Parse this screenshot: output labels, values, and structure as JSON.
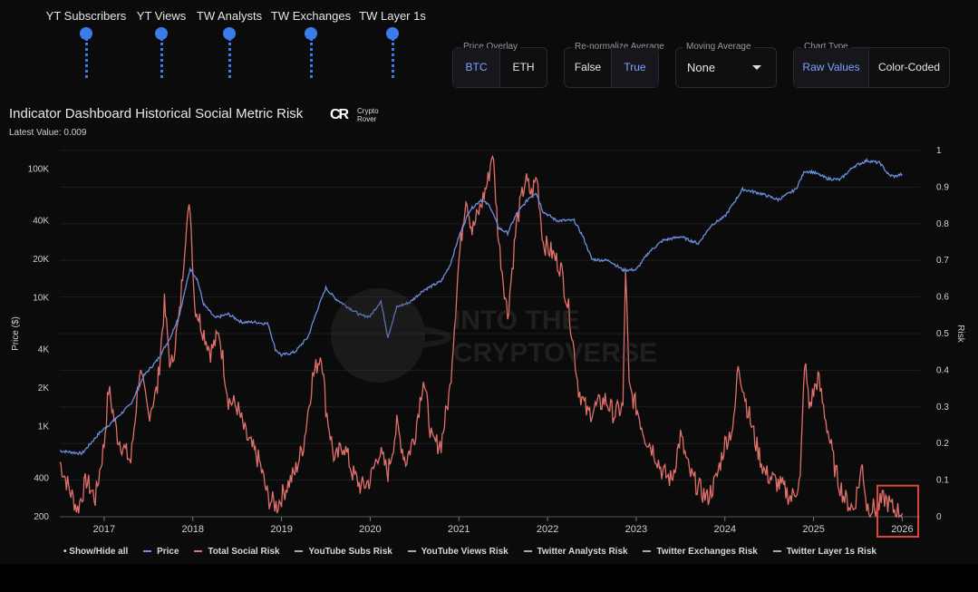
{
  "sliders": [
    {
      "label": "YT Subscribers"
    },
    {
      "label": "YT Views"
    },
    {
      "label": "TW Analysts"
    },
    {
      "label": "TW Exchanges"
    },
    {
      "label": "TW Layer 1s"
    }
  ],
  "controls": {
    "price_overlay": {
      "label": "Price Overlay",
      "options": [
        "BTC",
        "ETH"
      ],
      "selected": "BTC"
    },
    "renormalize": {
      "label": "Re-normalize Average",
      "options": [
        "False",
        "True"
      ],
      "selected": "True"
    },
    "moving_average": {
      "label": "Moving Average",
      "value": "None"
    },
    "chart_type": {
      "label": "Chart Type",
      "options": [
        "Raw Values",
        "Color-Coded"
      ],
      "selected": "Raw Values"
    }
  },
  "header": {
    "title": "Indicator Dashboard Historical Social Metric Risk",
    "latest_value": "Latest Value: 0.009",
    "logo_text_1": "Crypto",
    "logo_text_2": "Rover"
  },
  "watermark": {
    "line1": "INTO THE",
    "line2": "CRYPTOVERSE"
  },
  "colors": {
    "price": "#6b8fe0",
    "risk": "#e0706a",
    "accent": "#3b7de8",
    "highlight": "#e0463a"
  },
  "chart_data": {
    "type": "line",
    "x_ticks": [
      "2017",
      "2018",
      "2019",
      "2020",
      "2021",
      "2022",
      "2023",
      "2024",
      "2025",
      "2026"
    ],
    "xlim": [
      2016.5,
      2026.2
    ],
    "y_left": {
      "label": "Price ($)",
      "scale": "log",
      "ticks": [
        200,
        400,
        1000,
        2000,
        4000,
        10000,
        20000,
        40000,
        100000
      ],
      "tick_labels": [
        "200",
        "400",
        "1K",
        "2K",
        "4K",
        "10K",
        "20K",
        "40K",
        "100K"
      ],
      "lim": [
        200,
        140000
      ]
    },
    "y_right": {
      "label": "Risk",
      "ticks": [
        0,
        0.1,
        0.2,
        0.3,
        0.4,
        0.5,
        0.6,
        0.7,
        0.8,
        0.9,
        1
      ],
      "tick_labels": [
        "0",
        "0.1",
        "0.2",
        "0.3",
        "0.4",
        "0.5",
        "0.6",
        "0.7",
        "0.8",
        "0.9",
        "1"
      ],
      "lim": [
        0,
        1
      ]
    },
    "series": [
      {
        "name": "Price",
        "axis": "left",
        "points": [
          [
            2016.5,
            650
          ],
          [
            2016.75,
            620
          ],
          [
            2016.95,
            900
          ],
          [
            2017.1,
            1100
          ],
          [
            2017.3,
            1500
          ],
          [
            2017.45,
            2500
          ],
          [
            2017.6,
            3300
          ],
          [
            2017.75,
            5000
          ],
          [
            2017.85,
            7500
          ],
          [
            2017.97,
            17000
          ],
          [
            2018.05,
            14000
          ],
          [
            2018.12,
            9000
          ],
          [
            2018.25,
            7000
          ],
          [
            2018.4,
            7500
          ],
          [
            2018.55,
            6500
          ],
          [
            2018.7,
            6500
          ],
          [
            2018.85,
            6300
          ],
          [
            2018.93,
            4000
          ],
          [
            2019.0,
            3600
          ],
          [
            2019.15,
            3800
          ],
          [
            2019.3,
            5000
          ],
          [
            2019.4,
            8000
          ],
          [
            2019.5,
            12000
          ],
          [
            2019.6,
            10000
          ],
          [
            2019.75,
            8500
          ],
          [
            2019.9,
            7300
          ],
          [
            2020.0,
            7200
          ],
          [
            2020.12,
            9500
          ],
          [
            2020.2,
            5000
          ],
          [
            2020.3,
            8500
          ],
          [
            2020.45,
            9300
          ],
          [
            2020.6,
            11500
          ],
          [
            2020.8,
            13500
          ],
          [
            2020.9,
            18000
          ],
          [
            2021.0,
            30000
          ],
          [
            2021.12,
            48000
          ],
          [
            2021.25,
            58000
          ],
          [
            2021.35,
            52000
          ],
          [
            2021.45,
            35000
          ],
          [
            2021.55,
            32000
          ],
          [
            2021.65,
            45000
          ],
          [
            2021.8,
            61000
          ],
          [
            2021.87,
            66000
          ],
          [
            2021.95,
            47000
          ],
          [
            2022.1,
            40000
          ],
          [
            2022.3,
            40000
          ],
          [
            2022.4,
            30000
          ],
          [
            2022.5,
            20000
          ],
          [
            2022.7,
            19500
          ],
          [
            2022.85,
            16500
          ],
          [
            2023.0,
            16600
          ],
          [
            2023.15,
            23000
          ],
          [
            2023.3,
            28000
          ],
          [
            2023.5,
            30000
          ],
          [
            2023.7,
            26500
          ],
          [
            2023.85,
            37000
          ],
          [
            2024.0,
            43000
          ],
          [
            2024.15,
            62000
          ],
          [
            2024.2,
            70000
          ],
          [
            2024.4,
            65000
          ],
          [
            2024.6,
            58000
          ],
          [
            2024.8,
            70000
          ],
          [
            2024.9,
            97000
          ],
          [
            2025.0,
            95000
          ],
          [
            2025.15,
            85000
          ],
          [
            2025.3,
            83000
          ],
          [
            2025.45,
            105000
          ],
          [
            2025.6,
            117000
          ],
          [
            2025.75,
            112000
          ],
          [
            2025.85,
            90000
          ],
          [
            2025.92,
            88000
          ],
          [
            2026.0,
            92000
          ]
        ]
      },
      {
        "name": "Total Social Risk",
        "axis": "right",
        "points": [
          [
            2016.5,
            0.15
          ],
          [
            2016.6,
            0.08
          ],
          [
            2016.7,
            0.02
          ],
          [
            2016.8,
            0.1
          ],
          [
            2016.9,
            0.05
          ],
          [
            2017.0,
            0.2
          ],
          [
            2017.05,
            0.35
          ],
          [
            2017.15,
            0.22
          ],
          [
            2017.3,
            0.15
          ],
          [
            2017.4,
            0.4
          ],
          [
            2017.5,
            0.28
          ],
          [
            2017.6,
            0.35
          ],
          [
            2017.68,
            0.58
          ],
          [
            2017.75,
            0.4
          ],
          [
            2017.85,
            0.55
          ],
          [
            2017.92,
            0.78
          ],
          [
            2017.97,
            0.85
          ],
          [
            2018.02,
            0.58
          ],
          [
            2018.1,
            0.52
          ],
          [
            2018.2,
            0.45
          ],
          [
            2018.3,
            0.5
          ],
          [
            2018.4,
            0.32
          ],
          [
            2018.5,
            0.3
          ],
          [
            2018.6,
            0.22
          ],
          [
            2018.75,
            0.15
          ],
          [
            2018.85,
            0.05
          ],
          [
            2018.95,
            0.03
          ],
          [
            2019.05,
            0.08
          ],
          [
            2019.15,
            0.12
          ],
          [
            2019.25,
            0.2
          ],
          [
            2019.35,
            0.38
          ],
          [
            2019.45,
            0.45
          ],
          [
            2019.5,
            0.3
          ],
          [
            2019.6,
            0.15
          ],
          [
            2019.7,
            0.2
          ],
          [
            2019.8,
            0.12
          ],
          [
            2019.9,
            0.08
          ],
          [
            2020.0,
            0.1
          ],
          [
            2020.1,
            0.18
          ],
          [
            2020.2,
            0.12
          ],
          [
            2020.3,
            0.25
          ],
          [
            2020.4,
            0.15
          ],
          [
            2020.5,
            0.22
          ],
          [
            2020.6,
            0.38
          ],
          [
            2020.7,
            0.2
          ],
          [
            2020.8,
            0.2
          ],
          [
            2020.9,
            0.35
          ],
          [
            2021.0,
            0.7
          ],
          [
            2021.08,
            0.88
          ],
          [
            2021.15,
            0.78
          ],
          [
            2021.25,
            0.85
          ],
          [
            2021.33,
            0.92
          ],
          [
            2021.38,
            1.0
          ],
          [
            2021.45,
            0.75
          ],
          [
            2021.55,
            0.55
          ],
          [
            2021.65,
            0.8
          ],
          [
            2021.75,
            0.92
          ],
          [
            2021.82,
            0.88
          ],
          [
            2021.88,
            0.93
          ],
          [
            2021.95,
            0.75
          ],
          [
            2022.05,
            0.72
          ],
          [
            2022.15,
            0.68
          ],
          [
            2022.25,
            0.55
          ],
          [
            2022.35,
            0.35
          ],
          [
            2022.45,
            0.28
          ],
          [
            2022.55,
            0.3
          ],
          [
            2022.65,
            0.32
          ],
          [
            2022.75,
            0.28
          ],
          [
            2022.85,
            0.3
          ],
          [
            2022.88,
            0.68
          ],
          [
            2022.92,
            0.35
          ],
          [
            2023.0,
            0.3
          ],
          [
            2023.1,
            0.22
          ],
          [
            2023.2,
            0.18
          ],
          [
            2023.3,
            0.12
          ],
          [
            2023.4,
            0.1
          ],
          [
            2023.5,
            0.22
          ],
          [
            2023.6,
            0.12
          ],
          [
            2023.7,
            0.08
          ],
          [
            2023.8,
            0.05
          ],
          [
            2023.9,
            0.1
          ],
          [
            2024.0,
            0.2
          ],
          [
            2024.1,
            0.25
          ],
          [
            2024.15,
            0.42
          ],
          [
            2024.25,
            0.3
          ],
          [
            2024.35,
            0.2
          ],
          [
            2024.45,
            0.12
          ],
          [
            2024.55,
            0.1
          ],
          [
            2024.65,
            0.08
          ],
          [
            2024.75,
            0.05
          ],
          [
            2024.85,
            0.1
          ],
          [
            2024.9,
            0.43
          ],
          [
            2024.95,
            0.3
          ],
          [
            2025.05,
            0.38
          ],
          [
            2025.15,
            0.25
          ],
          [
            2025.25,
            0.12
          ],
          [
            2025.35,
            0.05
          ],
          [
            2025.45,
            0.02
          ],
          [
            2025.55,
            0.14
          ],
          [
            2025.6,
            0.03
          ],
          [
            2025.7,
            0.02
          ],
          [
            2025.8,
            0.05
          ],
          [
            2025.9,
            0.02
          ],
          [
            2026.0,
            0.01
          ]
        ]
      }
    ],
    "legend": [
      "Show/Hide all",
      "Price",
      "Total Social Risk",
      "YouTube Subs Risk",
      "YouTube Views Risk",
      "Twitter Analysts Risk",
      "Twitter Exchanges Risk",
      "Twitter Layer 1s Risk"
    ]
  }
}
